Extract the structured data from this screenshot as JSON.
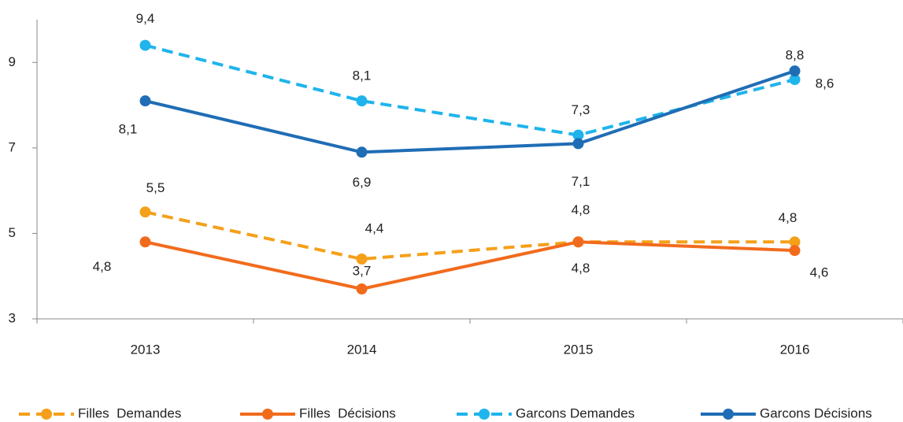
{
  "chart_data": {
    "type": "line",
    "categories": [
      "2013",
      "2014",
      "2015",
      "2016"
    ],
    "series": [
      {
        "name": "Filles  Demandes",
        "color": "#f5a01a",
        "dashed": true,
        "values": [
          5.5,
          4.4,
          4.8,
          4.8
        ],
        "value_labels": [
          "5,5",
          "4,4",
          "4,8",
          "4,8"
        ]
      },
      {
        "name": "Filles  Décisions",
        "color": "#f26b1d",
        "dashed": false,
        "values": [
          4.8,
          3.7,
          4.8,
          4.6
        ],
        "value_labels": [
          "4,8",
          "3,7",
          "4,8",
          "4,6"
        ]
      },
      {
        "name": "Garcons Demandes",
        "color": "#1fb4ec",
        "dashed": true,
        "values": [
          9.4,
          8.1,
          7.3,
          8.6
        ],
        "value_labels": [
          "9,4",
          "8,1",
          "7,3",
          "8,6"
        ]
      },
      {
        "name": "Garcons Décisions",
        "color": "#1f6db5",
        "dashed": false,
        "values": [
          8.1,
          6.9,
          7.1,
          8.8
        ],
        "value_labels": [
          "8,1",
          "6,9",
          "7,1",
          "8,8"
        ]
      }
    ],
    "ylim": [
      3,
      10
    ],
    "yticks": [
      3,
      5,
      7,
      9
    ],
    "grid": false,
    "legend": "bottom"
  }
}
